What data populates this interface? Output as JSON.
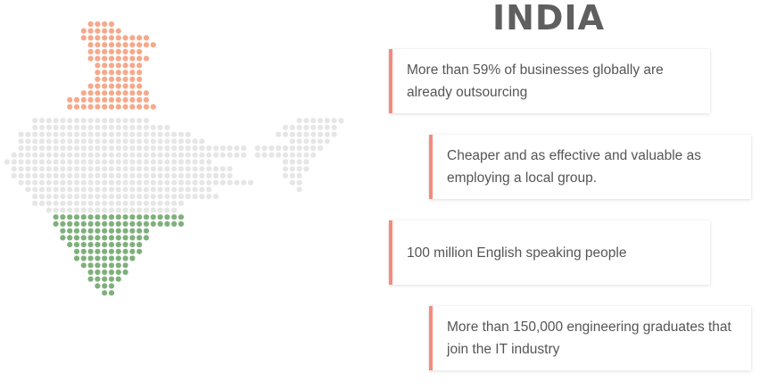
{
  "title": "INDIA",
  "colors": {
    "saffron": "#f6a98a",
    "white_gray": "#e6e6e6",
    "green": "#7fb07c",
    "accent": "#f58a7e",
    "title": "#5f5f5f"
  },
  "facts": [
    {
      "text": "More than 59% of businesses globally are already outsourcing"
    },
    {
      "text": "Cheaper and as effective and valuable as employing a local group."
    },
    {
      "text": "100 million English speaking people"
    },
    {
      "text": "More than 150,000 engineering graduates that join the IT industry"
    }
  ]
}
